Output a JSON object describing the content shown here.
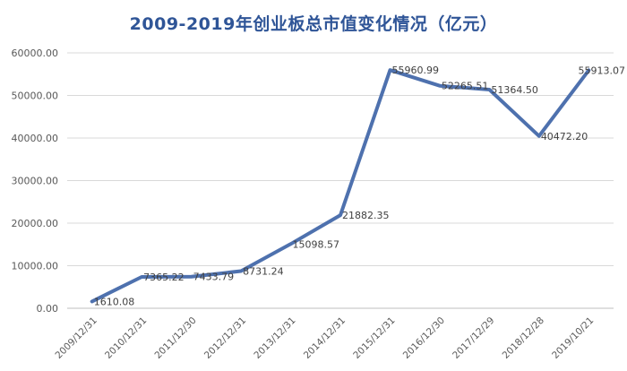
{
  "chart_data": {
    "type": "line",
    "title": "2009-2019年创业板总市值变化情况（亿元）",
    "xlabel": "",
    "ylabel": "",
    "categories": [
      "2009/12/31",
      "2010/12/31",
      "2011/12/30",
      "2012/12/31",
      "2013/12/31",
      "2014/12/31",
      "2015/12/31",
      "2016/12/30",
      "2017/12/29",
      "2018/12/28",
      "2019/10/21"
    ],
    "series": [
      {
        "values": [
          1610.08,
          7365.22,
          7433.79,
          8731.24,
          15098.57,
          21882.35,
          55960.99,
          52265.51,
          51364.5,
          40472.2,
          55913.07
        ]
      }
    ],
    "data_labels": [
      "1610.08",
      "7365.22",
      "7433.79",
      "8731.24",
      "15098.57",
      "21882.35",
      "55960.99",
      "52265.51",
      "51364.50",
      "40472.20",
      "55913.07"
    ],
    "yticks": [
      "0.00",
      "10000.00",
      "20000.00",
      "30000.00",
      "40000.00",
      "50000.00",
      "60000.00"
    ],
    "ylim": [
      0,
      60000
    ],
    "grid": true,
    "colors": {
      "line": "#4E71AE",
      "grid": "#D9D9D9",
      "title": "#2F5597"
    }
  }
}
